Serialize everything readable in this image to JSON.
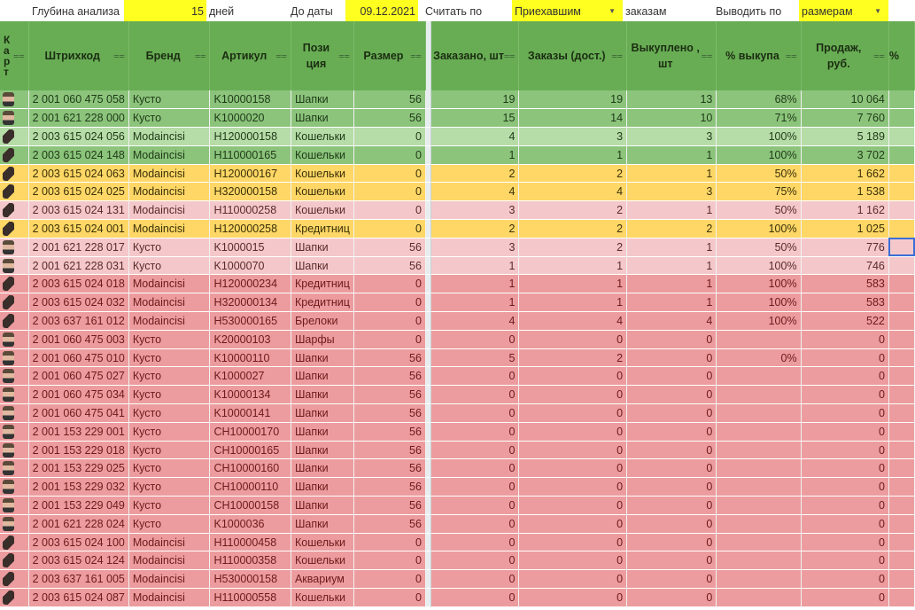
{
  "params": {
    "depth_label": "Глубина анализа",
    "depth_value": "15",
    "depth_unit": "дней",
    "date_label": "До даты",
    "date_value": "09.12.2021",
    "count_label": "Считать по",
    "count_value": "Приехавшим",
    "count_suffix": "заказам",
    "output_label": "Выводить по",
    "output_value": "размерам"
  },
  "colors": {
    "header": "#68ad54",
    "green": "#8cc47c",
    "light_green": "#b6dca8",
    "yellow": "#fed766",
    "pink": "#f4c8ca",
    "red": "#ec9c9e",
    "param_highlight": "#ffff20"
  },
  "columns": [
    "Карт",
    "Штрихкод",
    "Бренд",
    "Артикул",
    "Позиция",
    "Размер",
    "Заказано, шт",
    "Заказы (дост.)",
    "Выкуплено , шт",
    "% выкупа",
    "Продаж, руб.",
    "%"
  ],
  "rows": [
    {
      "status": "g",
      "thumb": "person-photo",
      "barcode": "2 001 060 475 058",
      "brand": "Кусто",
      "sku": "K10000158",
      "pos": "Шапки",
      "size": "56",
      "ordered": "19",
      "ordered_del": "19",
      "bought": "13",
      "pct": "68%",
      "sales": "10 064"
    },
    {
      "status": "g",
      "thumb": "person-photo",
      "barcode": "2 001 621 228 000",
      "brand": "Кусто",
      "sku": "K1000020",
      "pos": "Шапки",
      "size": "56",
      "ordered": "15",
      "ordered_del": "14",
      "bought": "10",
      "pct": "71%",
      "sales": "7 760"
    },
    {
      "status": "lg",
      "thumb": "wallet-photo",
      "barcode": "2 003 615 024 056",
      "brand": "Modaincisi",
      "sku": "H120000158",
      "pos": "Кошельки",
      "size": "0",
      "ordered": "4",
      "ordered_del": "3",
      "bought": "3",
      "pct": "100%",
      "sales": "5 189"
    },
    {
      "status": "g",
      "thumb": "wallet-photo",
      "barcode": "2 003 615 024 148",
      "brand": "Modaincisi",
      "sku": "H110000165",
      "pos": "Кошельки",
      "size": "0",
      "ordered": "1",
      "ordered_del": "1",
      "bought": "1",
      "pct": "100%",
      "sales": "3 702"
    },
    {
      "status": "y",
      "thumb": "wallet-photo",
      "barcode": "2 003 615 024 063",
      "brand": "Modaincisi",
      "sku": "H120000167",
      "pos": "Кошельки",
      "size": "0",
      "ordered": "2",
      "ordered_del": "2",
      "bought": "1",
      "pct": "50%",
      "sales": "1 662"
    },
    {
      "status": "y",
      "thumb": "wallet-photo",
      "barcode": "2 003 615 024 025",
      "brand": "Modaincisi",
      "sku": "H320000158",
      "pos": "Кошельки",
      "size": "0",
      "ordered": "4",
      "ordered_del": "4",
      "bought": "3",
      "pct": "75%",
      "sales": "1 538"
    },
    {
      "status": "p",
      "thumb": "wallet-photo",
      "barcode": "2 003 615 024 131",
      "brand": "Modaincisi",
      "sku": "H110000258",
      "pos": "Кошельки",
      "size": "0",
      "ordered": "3",
      "ordered_del": "2",
      "bought": "1",
      "pct": "50%",
      "sales": "1 162"
    },
    {
      "status": "y",
      "thumb": "wallet-photo",
      "barcode": "2 003 615 024 001",
      "brand": "Modaincisi",
      "sku": "H120000258",
      "pos": "Кредитниц",
      "size": "0",
      "ordered": "2",
      "ordered_del": "2",
      "bought": "2",
      "pct": "100%",
      "sales": "1 025"
    },
    {
      "status": "p",
      "thumb": "person-photo",
      "barcode": "2 001 621 228 017",
      "brand": "Кусто",
      "sku": "K1000015",
      "pos": "Шапки",
      "size": "56",
      "ordered": "3",
      "ordered_del": "2",
      "bought": "1",
      "pct": "50%",
      "sales": "776"
    },
    {
      "status": "p",
      "thumb": "person-photo",
      "barcode": "2 001 621 228 031",
      "brand": "Кусто",
      "sku": "K1000070",
      "pos": "Шапки",
      "size": "56",
      "ordered": "1",
      "ordered_del": "1",
      "bought": "1",
      "pct": "100%",
      "sales": "746"
    },
    {
      "status": "rd",
      "thumb": "wallet-photo",
      "barcode": "2 003 615 024 018",
      "brand": "Modaincisi",
      "sku": "H120000234",
      "pos": "Кредитниц",
      "size": "0",
      "ordered": "1",
      "ordered_del": "1",
      "bought": "1",
      "pct": "100%",
      "sales": "583"
    },
    {
      "status": "rd",
      "thumb": "wallet-photo",
      "barcode": "2 003 615 024 032",
      "brand": "Modaincisi",
      "sku": "H320000134",
      "pos": "Кредитниц",
      "size": "0",
      "ordered": "1",
      "ordered_del": "1",
      "bought": "1",
      "pct": "100%",
      "sales": "583"
    },
    {
      "status": "rd",
      "thumb": "wallet-photo",
      "barcode": "2 003 637 161 012",
      "brand": "Modaincisi",
      "sku": "H530000165",
      "pos": "Брелоки",
      "size": "0",
      "ordered": "4",
      "ordered_del": "4",
      "bought": "4",
      "pct": "100%",
      "sales": "522"
    },
    {
      "status": "rd",
      "thumb": "person-photo",
      "barcode": "2 001 060 475 003",
      "brand": "Кусто",
      "sku": "K20000103",
      "pos": "Шарфы",
      "size": "0",
      "ordered": "0",
      "ordered_del": "0",
      "bought": "0",
      "pct": "",
      "sales": "0"
    },
    {
      "status": "rd",
      "thumb": "person-photo",
      "barcode": "2 001 060 475 010",
      "brand": "Кусто",
      "sku": "K10000110",
      "pos": "Шапки",
      "size": "56",
      "ordered": "5",
      "ordered_del": "2",
      "bought": "0",
      "pct": "0%",
      "sales": "0"
    },
    {
      "status": "rd",
      "thumb": "person-photo",
      "barcode": "2 001 060 475 027",
      "brand": "Кусто",
      "sku": "K1000027",
      "pos": "Шапки",
      "size": "56",
      "ordered": "0",
      "ordered_del": "0",
      "bought": "0",
      "pct": "",
      "sales": "0"
    },
    {
      "status": "rd",
      "thumb": "person-photo",
      "barcode": "2 001 060 475 034",
      "brand": "Кусто",
      "sku": "K10000134",
      "pos": "Шапки",
      "size": "56",
      "ordered": "0",
      "ordered_del": "0",
      "bought": "0",
      "pct": "",
      "sales": "0"
    },
    {
      "status": "rd",
      "thumb": "person-photo",
      "barcode": "2 001 060 475 041",
      "brand": "Кусто",
      "sku": "K10000141",
      "pos": "Шапки",
      "size": "56",
      "ordered": "0",
      "ordered_del": "0",
      "bought": "0",
      "pct": "",
      "sales": "0"
    },
    {
      "status": "rd",
      "thumb": "person-photo",
      "barcode": "2 001 153 229 001",
      "brand": "Кусто",
      "sku": "CH10000170",
      "pos": "Шапки",
      "size": "56",
      "ordered": "0",
      "ordered_del": "0",
      "bought": "0",
      "pct": "",
      "sales": "0"
    },
    {
      "status": "rd",
      "thumb": "person-photo",
      "barcode": "2 001 153 229 018",
      "brand": "Кусто",
      "sku": "CH10000165",
      "pos": "Шапки",
      "size": "56",
      "ordered": "0",
      "ordered_del": "0",
      "bought": "0",
      "pct": "",
      "sales": "0"
    },
    {
      "status": "rd",
      "thumb": "person-photo",
      "barcode": "2 001 153 229 025",
      "brand": "Кусто",
      "sku": "CH10000160",
      "pos": "Шапки",
      "size": "56",
      "ordered": "0",
      "ordered_del": "0",
      "bought": "0",
      "pct": "",
      "sales": "0"
    },
    {
      "status": "rd",
      "thumb": "person-photo",
      "barcode": "2 001 153 229 032",
      "brand": "Кусто",
      "sku": "CH10000110",
      "pos": "Шапки",
      "size": "56",
      "ordered": "0",
      "ordered_del": "0",
      "bought": "0",
      "pct": "",
      "sales": "0"
    },
    {
      "status": "rd",
      "thumb": "person-photo",
      "barcode": "2 001 153 229 049",
      "brand": "Кусто",
      "sku": "CH10000158",
      "pos": "Шапки",
      "size": "56",
      "ordered": "0",
      "ordered_del": "0",
      "bought": "0",
      "pct": "",
      "sales": "0"
    },
    {
      "status": "rd",
      "thumb": "person-photo",
      "barcode": "2 001 621 228 024",
      "brand": "Кусто",
      "sku": "K1000036",
      "pos": "Шапки",
      "size": "56",
      "ordered": "0",
      "ordered_del": "0",
      "bought": "0",
      "pct": "",
      "sales": "0"
    },
    {
      "status": "rd",
      "thumb": "wallet-photo",
      "barcode": "2 003 615 024 100",
      "brand": "Modaincisi",
      "sku": "H110000458",
      "pos": "Кошельки",
      "size": "0",
      "ordered": "0",
      "ordered_del": "0",
      "bought": "0",
      "pct": "",
      "sales": "0"
    },
    {
      "status": "rd",
      "thumb": "wallet-photo",
      "barcode": "2 003 615 024 124",
      "brand": "Modaincisi",
      "sku": "H110000358",
      "pos": "Кошельки",
      "size": "0",
      "ordered": "0",
      "ordered_del": "0",
      "bought": "0",
      "pct": "",
      "sales": "0"
    },
    {
      "status": "rd",
      "thumb": "wallet-photo",
      "barcode": "2 003 637 161 005",
      "brand": "Modaincisi",
      "sku": "H530000158",
      "pos": "Аквариум",
      "size": "0",
      "ordered": "0",
      "ordered_del": "0",
      "bought": "0",
      "pct": "",
      "sales": "0"
    },
    {
      "status": "rd",
      "thumb": "wallet-photo",
      "barcode": "2 003 615 024 087",
      "brand": "Modaincisi",
      "sku": "H110000558",
      "pos": "Кошельки",
      "size": "0",
      "ordered": "0",
      "ordered_del": "0",
      "bought": "0",
      "pct": "",
      "sales": "0"
    }
  ]
}
